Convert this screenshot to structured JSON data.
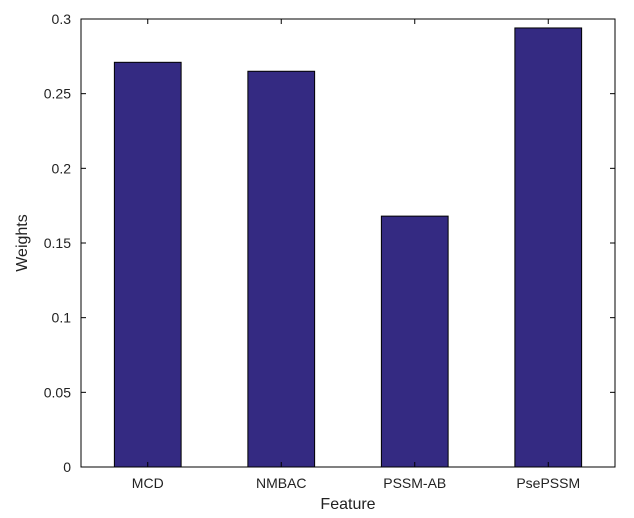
{
  "chart_data": {
    "type": "bar",
    "categories": [
      "MCD",
      "NMBAC",
      "PSSM-AB",
      "PsePSSM"
    ],
    "values": [
      0.271,
      0.265,
      0.168,
      0.294
    ],
    "xlabel": "Feature",
    "ylabel": "Weights",
    "ylim": [
      0,
      0.3
    ],
    "yticks": [
      0,
      0.05,
      0.1,
      0.15,
      0.2,
      0.25,
      0.3
    ],
    "ytick_labels": [
      "0",
      "0.05",
      "0.1",
      "0.15",
      "0.2",
      "0.25",
      "0.3"
    ],
    "grid": false,
    "bar_color": "#342a82",
    "bar_edge_color": "#000000"
  }
}
